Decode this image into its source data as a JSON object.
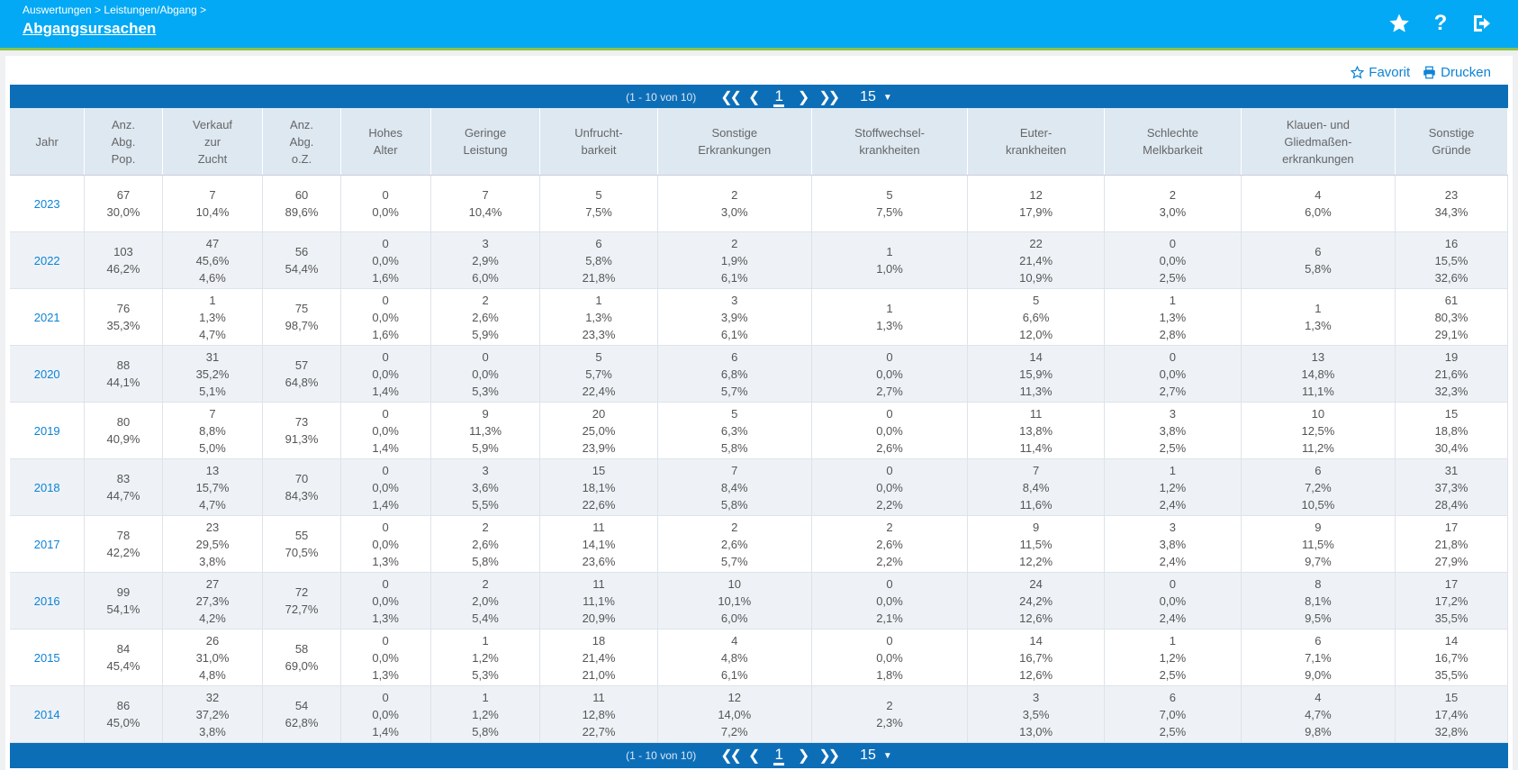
{
  "header": {
    "breadcrumb": "Auswertungen > Leistungen/Abgang >",
    "title": "Abgangsursachen"
  },
  "actions": {
    "favorite": "Favorit",
    "print": "Drucken"
  },
  "pager": {
    "range": "(1 - 10 von 10)",
    "page": "1",
    "per_page": "15"
  },
  "table": {
    "headers": [
      [
        "Jahr"
      ],
      [
        "Anz.",
        "Abg.",
        "Pop."
      ],
      [
        "Verkauf",
        "zur",
        "Zucht"
      ],
      [
        "Anz.",
        "Abg.",
        "o.Z."
      ],
      [
        "Hohes",
        "Alter"
      ],
      [
        "Geringe",
        "Leistung"
      ],
      [
        "Unfrucht-",
        "barkeit"
      ],
      [
        "Sonstige",
        "Erkrankungen"
      ],
      [
        "Stoffwechsel-",
        "krankheiten"
      ],
      [
        "Euter-",
        "krankheiten"
      ],
      [
        "Schlechte",
        "Melkbarkeit"
      ],
      [
        "Klauen- und",
        "Gliedmaßen-",
        "erkrankungen"
      ],
      [
        "Sonstige",
        "Gründe"
      ]
    ],
    "rows": [
      [
        "2023",
        [
          "67",
          "30,0%"
        ],
        [
          "7",
          "10,4%"
        ],
        [
          "60",
          "89,6%"
        ],
        [
          "0",
          "0,0%"
        ],
        [
          "7",
          "10,4%"
        ],
        [
          "5",
          "7,5%"
        ],
        [
          "2",
          "3,0%"
        ],
        [
          "5",
          "7,5%"
        ],
        [
          "12",
          "17,9%"
        ],
        [
          "2",
          "3,0%"
        ],
        [
          "4",
          "6,0%"
        ],
        [
          "23",
          "34,3%"
        ]
      ],
      [
        "2022",
        [
          "103",
          "46,2%"
        ],
        [
          "47",
          "45,6%",
          "4,6%"
        ],
        [
          "56",
          "54,4%"
        ],
        [
          "0",
          "0,0%",
          "1,6%"
        ],
        [
          "3",
          "2,9%",
          "6,0%"
        ],
        [
          "6",
          "5,8%",
          "21,8%"
        ],
        [
          "2",
          "1,9%",
          "6,1%"
        ],
        [
          "1",
          "1,0%"
        ],
        [
          "22",
          "21,4%",
          "10,9%"
        ],
        [
          "0",
          "0,0%",
          "2,5%"
        ],
        [
          "6",
          "5,8%"
        ],
        [
          "16",
          "15,5%",
          "32,6%"
        ]
      ],
      [
        "2021",
        [
          "76",
          "35,3%"
        ],
        [
          "1",
          "1,3%",
          "4,7%"
        ],
        [
          "75",
          "98,7%"
        ],
        [
          "0",
          "0,0%",
          "1,6%"
        ],
        [
          "2",
          "2,6%",
          "5,9%"
        ],
        [
          "1",
          "1,3%",
          "23,3%"
        ],
        [
          "3",
          "3,9%",
          "6,1%"
        ],
        [
          "1",
          "1,3%"
        ],
        [
          "5",
          "6,6%",
          "12,0%"
        ],
        [
          "1",
          "1,3%",
          "2,8%"
        ],
        [
          "1",
          "1,3%"
        ],
        [
          "61",
          "80,3%",
          "29,1%"
        ]
      ],
      [
        "2020",
        [
          "88",
          "44,1%"
        ],
        [
          "31",
          "35,2%",
          "5,1%"
        ],
        [
          "57",
          "64,8%"
        ],
        [
          "0",
          "0,0%",
          "1,4%"
        ],
        [
          "0",
          "0,0%",
          "5,3%"
        ],
        [
          "5",
          "5,7%",
          "22,4%"
        ],
        [
          "6",
          "6,8%",
          "5,7%"
        ],
        [
          "0",
          "0,0%",
          "2,7%"
        ],
        [
          "14",
          "15,9%",
          "11,3%"
        ],
        [
          "0",
          "0,0%",
          "2,7%"
        ],
        [
          "13",
          "14,8%",
          "11,1%"
        ],
        [
          "19",
          "21,6%",
          "32,3%"
        ]
      ],
      [
        "2019",
        [
          "80",
          "40,9%"
        ],
        [
          "7",
          "8,8%",
          "5,0%"
        ],
        [
          "73",
          "91,3%"
        ],
        [
          "0",
          "0,0%",
          "1,4%"
        ],
        [
          "9",
          "11,3%",
          "5,9%"
        ],
        [
          "20",
          "25,0%",
          "23,9%"
        ],
        [
          "5",
          "6,3%",
          "5,8%"
        ],
        [
          "0",
          "0,0%",
          "2,6%"
        ],
        [
          "11",
          "13,8%",
          "11,4%"
        ],
        [
          "3",
          "3,8%",
          "2,5%"
        ],
        [
          "10",
          "12,5%",
          "11,2%"
        ],
        [
          "15",
          "18,8%",
          "30,4%"
        ]
      ],
      [
        "2018",
        [
          "83",
          "44,7%"
        ],
        [
          "13",
          "15,7%",
          "4,7%"
        ],
        [
          "70",
          "84,3%"
        ],
        [
          "0",
          "0,0%",
          "1,4%"
        ],
        [
          "3",
          "3,6%",
          "5,5%"
        ],
        [
          "15",
          "18,1%",
          "22,6%"
        ],
        [
          "7",
          "8,4%",
          "5,8%"
        ],
        [
          "0",
          "0,0%",
          "2,2%"
        ],
        [
          "7",
          "8,4%",
          "11,6%"
        ],
        [
          "1",
          "1,2%",
          "2,4%"
        ],
        [
          "6",
          "7,2%",
          "10,5%"
        ],
        [
          "31",
          "37,3%",
          "28,4%"
        ]
      ],
      [
        "2017",
        [
          "78",
          "42,2%"
        ],
        [
          "23",
          "29,5%",
          "3,8%"
        ],
        [
          "55",
          "70,5%"
        ],
        [
          "0",
          "0,0%",
          "1,3%"
        ],
        [
          "2",
          "2,6%",
          "5,8%"
        ],
        [
          "11",
          "14,1%",
          "23,6%"
        ],
        [
          "2",
          "2,6%",
          "5,7%"
        ],
        [
          "2",
          "2,6%",
          "2,2%"
        ],
        [
          "9",
          "11,5%",
          "12,2%"
        ],
        [
          "3",
          "3,8%",
          "2,4%"
        ],
        [
          "9",
          "11,5%",
          "9,7%"
        ],
        [
          "17",
          "21,8%",
          "27,9%"
        ]
      ],
      [
        "2016",
        [
          "99",
          "54,1%"
        ],
        [
          "27",
          "27,3%",
          "4,2%"
        ],
        [
          "72",
          "72,7%"
        ],
        [
          "0",
          "0,0%",
          "1,3%"
        ],
        [
          "2",
          "2,0%",
          "5,4%"
        ],
        [
          "11",
          "11,1%",
          "20,9%"
        ],
        [
          "10",
          "10,1%",
          "6,0%"
        ],
        [
          "0",
          "0,0%",
          "2,1%"
        ],
        [
          "24",
          "24,2%",
          "12,6%"
        ],
        [
          "0",
          "0,0%",
          "2,4%"
        ],
        [
          "8",
          "8,1%",
          "9,5%"
        ],
        [
          "17",
          "17,2%",
          "35,5%"
        ]
      ],
      [
        "2015",
        [
          "84",
          "45,4%"
        ],
        [
          "26",
          "31,0%",
          "4,8%"
        ],
        [
          "58",
          "69,0%"
        ],
        [
          "0",
          "0,0%",
          "1,3%"
        ],
        [
          "1",
          "1,2%",
          "5,3%"
        ],
        [
          "18",
          "21,4%",
          "21,0%"
        ],
        [
          "4",
          "4,8%",
          "6,1%"
        ],
        [
          "0",
          "0,0%",
          "1,8%"
        ],
        [
          "14",
          "16,7%",
          "12,6%"
        ],
        [
          "1",
          "1,2%",
          "2,5%"
        ],
        [
          "6",
          "7,1%",
          "9,0%"
        ],
        [
          "14",
          "16,7%",
          "35,5%"
        ]
      ],
      [
        "2014",
        [
          "86",
          "45,0%"
        ],
        [
          "32",
          "37,2%",
          "3,8%"
        ],
        [
          "54",
          "62,8%"
        ],
        [
          "0",
          "0,0%",
          "1,4%"
        ],
        [
          "1",
          "1,2%",
          "5,8%"
        ],
        [
          "11",
          "12,8%",
          "22,7%"
        ],
        [
          "12",
          "14,0%",
          "7,2%"
        ],
        [
          "2",
          "2,3%"
        ],
        [
          "3",
          "3,5%",
          "13,0%"
        ],
        [
          "6",
          "7,0%",
          "2,5%"
        ],
        [
          "4",
          "4,7%",
          "9,8%"
        ],
        [
          "15",
          "17,4%",
          "32,8%"
        ]
      ]
    ]
  }
}
